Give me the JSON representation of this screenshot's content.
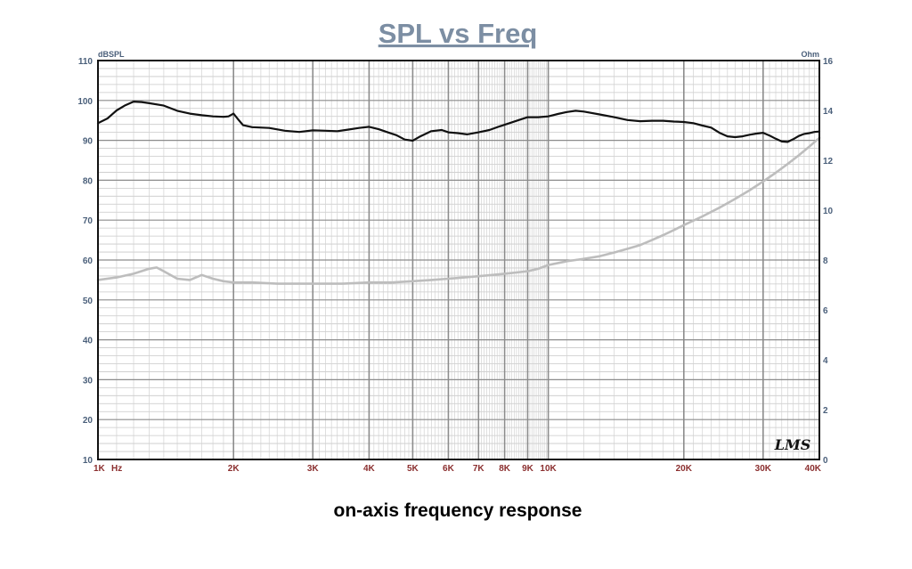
{
  "chart_data": {
    "type": "line",
    "title": "SPL vs Freq",
    "caption": "on-axis frequency response",
    "xlabel": "Hz",
    "y_left_label": "dBSPL",
    "y_right_label": "Ohm",
    "logo": "LMS",
    "x_scale": "log",
    "xlim": [
      1000,
      40000
    ],
    "ylim_left": [
      10,
      110
    ],
    "ylim_right": [
      0,
      16
    ],
    "grid": true,
    "x_ticks": [
      {
        "value": 1000,
        "label": "1K"
      },
      {
        "value": 2000,
        "label": "2K"
      },
      {
        "value": 3000,
        "label": "3K"
      },
      {
        "value": 4000,
        "label": "4K"
      },
      {
        "value": 5000,
        "label": "5K"
      },
      {
        "value": 6000,
        "label": "6K"
      },
      {
        "value": 7000,
        "label": "7K"
      },
      {
        "value": 8000,
        "label": "8K"
      },
      {
        "value": 9000,
        "label": "9K"
      },
      {
        "value": 10000,
        "label": "10K"
      },
      {
        "value": 20000,
        "label": "20K"
      },
      {
        "value": 30000,
        "label": "30K"
      },
      {
        "value": 40000,
        "label": "40K"
      }
    ],
    "y_left_ticks": [
      110,
      100,
      90,
      80,
      70,
      60,
      50,
      40,
      30,
      20,
      10
    ],
    "y_right_ticks": [
      16,
      14,
      12,
      10,
      8,
      6,
      4,
      2,
      0
    ],
    "series": [
      {
        "axis": "left",
        "color": "#111111",
        "x": [
          1000,
          1050,
          1100,
          1150,
          1200,
          1250,
          1300,
          1400,
          1500,
          1600,
          1700,
          1800,
          1900,
          1950,
          2000,
          2050,
          2100,
          2200,
          2400,
          2600,
          2800,
          3000,
          3200,
          3400,
          3600,
          3800,
          4000,
          4200,
          4400,
          4600,
          4800,
          5000,
          5200,
          5500,
          5800,
          6000,
          6300,
          6600,
          7000,
          7400,
          7800,
          8200,
          8600,
          9000,
          9500,
          10000,
          10500,
          11000,
          11500,
          12000,
          13000,
          14000,
          15000,
          16000,
          17000,
          18000,
          19000,
          20000,
          21000,
          22000,
          23000,
          24000,
          25000,
          26000,
          27000,
          28000,
          29000,
          30000,
          31000,
          32000,
          33000,
          34000,
          35000,
          36000,
          37000,
          38000,
          39000,
          40000
        ],
        "y": [
          94.3,
          95.5,
          97.5,
          98.8,
          99.7,
          99.6,
          99.3,
          98.7,
          97.4,
          96.7,
          96.3,
          96.0,
          95.9,
          96.0,
          96.7,
          95.2,
          93.8,
          93.3,
          93.1,
          92.4,
          92.1,
          92.5,
          92.4,
          92.3,
          92.7,
          93.1,
          93.4,
          92.8,
          92.0,
          91.3,
          90.2,
          89.9,
          91.0,
          92.3,
          92.6,
          92.0,
          91.8,
          91.5,
          92.0,
          92.6,
          93.5,
          94.3,
          95.1,
          95.8,
          95.8,
          96.0,
          96.6,
          97.1,
          97.4,
          97.2,
          96.5,
          95.8,
          95.1,
          94.8,
          94.9,
          94.9,
          94.7,
          94.6,
          94.3,
          93.7,
          93.2,
          91.9,
          91.0,
          90.8,
          91.0,
          91.4,
          91.7,
          91.9,
          91.2,
          90.4,
          89.7,
          89.6,
          90.3,
          91.1,
          91.6,
          91.8,
          92.1,
          92.2
        ]
      },
      {
        "axis": "right",
        "color": "#bdbdbd",
        "x": [
          1000,
          1100,
          1200,
          1300,
          1350,
          1400,
          1500,
          1600,
          1700,
          1800,
          1900,
          2000,
          2200,
          2500,
          3000,
          3500,
          4000,
          4500,
          5000,
          5500,
          6000,
          6500,
          7000,
          7500,
          8000,
          8500,
          9000,
          9500,
          10000,
          11000,
          12000,
          13000,
          14000,
          15000,
          16000,
          17000,
          18000,
          19000,
          20000,
          22000,
          24000,
          26000,
          28000,
          30000,
          32000,
          34000,
          36000,
          38000,
          40000
        ],
        "y": [
          7.2,
          7.3,
          7.45,
          7.65,
          7.7,
          7.55,
          7.25,
          7.2,
          7.4,
          7.25,
          7.15,
          7.1,
          7.1,
          7.05,
          7.05,
          7.05,
          7.1,
          7.1,
          7.15,
          7.2,
          7.25,
          7.3,
          7.35,
          7.4,
          7.45,
          7.5,
          7.55,
          7.65,
          7.8,
          7.95,
          8.05,
          8.15,
          8.3,
          8.45,
          8.6,
          8.8,
          9.0,
          9.2,
          9.4,
          9.75,
          10.1,
          10.45,
          10.8,
          11.15,
          11.5,
          11.85,
          12.2,
          12.55,
          12.9
        ]
      }
    ]
  }
}
